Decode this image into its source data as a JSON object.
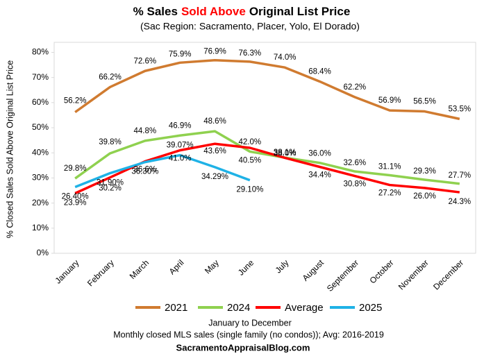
{
  "chart_data": {
    "type": "line",
    "title": [
      {
        "text": "% Sales",
        "color": "#000000"
      },
      {
        "text": "Sold Above",
        "color": "#ff0000"
      },
      {
        "text": "Original List Price",
        "color": "#000000"
      }
    ],
    "subtitle": "(Sac Region: Sacramento, Placer, Yolo, El Dorado)",
    "y_label": "% Closed Sales Sold Above Original List Price",
    "x_label": "January to December",
    "notes": [
      "Monthly closed MLS sales (single family (no condos)); Avg: 2016-2019",
      "SacramentoAppraisalBlog.com"
    ],
    "categories": [
      "January",
      "February",
      "March",
      "April",
      "May",
      "June",
      "July",
      "August",
      "September",
      "October",
      "November",
      "December"
    ],
    "series": [
      {
        "name": "2021",
        "color": "#d07b30",
        "values": [
          56.2,
          66.2,
          72.6,
          75.9,
          76.9,
          76.3,
          74.0,
          68.4,
          62.2,
          56.9,
          56.5,
          53.5
        ],
        "value_labels": [
          "56.2%",
          "66.2%",
          "72.6%",
          "75.9%",
          "76.9%",
          "76.3%",
          "74.0%",
          "68.4%",
          "62.2%",
          "56.9%",
          "56.5%",
          "53.5%"
        ]
      },
      {
        "name": "2024",
        "color": "#8fd14f",
        "values": [
          29.8,
          39.8,
          44.8,
          46.9,
          48.6,
          40.5,
          38.1,
          36.0,
          32.6,
          31.1,
          29.3,
          27.7
        ],
        "value_labels": [
          "29.8%",
          "39.8%",
          "44.8%",
          "46.9%",
          "48.6%",
          "40.5%",
          "38.1%",
          "36.0%",
          "32.6%",
          "31.1%",
          "29.3%",
          "27.7%"
        ]
      },
      {
        "name": "Average",
        "color": "#ff0000",
        "values": [
          23.9,
          30.2,
          36.6,
          41.0,
          43.6,
          42.0,
          38.0,
          34.4,
          30.8,
          27.2,
          26.0,
          24.3
        ],
        "value_labels": [
          "23.9%",
          "30.2%",
          "36.6%",
          "41.0%",
          "43.6%",
          "42.0%",
          "38.0%",
          "34.4%",
          "30.8%",
          "27.2%",
          "26.0%",
          "24.3%"
        ]
      },
      {
        "name": "2025",
        "color": "#1fb2e6",
        "values": [
          26.4,
          31.9,
          36.3,
          39.07,
          34.29,
          29.1,
          null,
          null,
          null,
          null,
          null,
          null
        ],
        "value_labels": [
          "26.40%",
          "31.90%",
          "36.30%",
          "39.07%",
          "34.29%",
          "29.10%",
          null,
          null,
          null,
          null,
          null,
          null
        ]
      }
    ],
    "ylim": [
      0,
      84
    ],
    "yticks": [
      {
        "value": 0,
        "label": "0%"
      },
      {
        "value": 10,
        "label": "10%"
      },
      {
        "value": 20,
        "label": "20%"
      },
      {
        "value": 30,
        "label": "30%"
      },
      {
        "value": 40,
        "label": "40%"
      },
      {
        "value": 50,
        "label": "50%"
      },
      {
        "value": 60,
        "label": "60%"
      },
      {
        "value": 70,
        "label": "70%"
      },
      {
        "value": 80,
        "label": "80%"
      }
    ],
    "legend": "bottom"
  }
}
